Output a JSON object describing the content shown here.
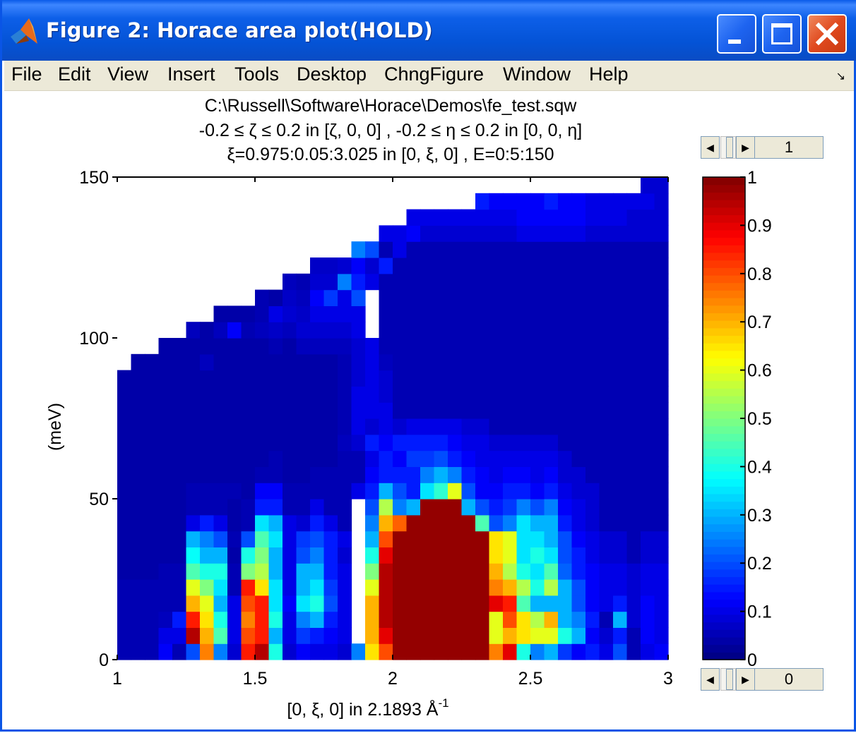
{
  "window": {
    "title": "Figure 2: Horace area plot(HOLD)",
    "app_icon": "matlab-icon",
    "controls": [
      "minimize-icon",
      "maximize-icon",
      "close-icon"
    ]
  },
  "menubar": {
    "items": [
      "File",
      "Edit",
      "View",
      "Insert",
      "Tools",
      "Desktop",
      "ChngFigure",
      "Window",
      "Help"
    ],
    "overflow_icon": "dock-arrow-icon"
  },
  "figure": {
    "title_lines": [
      "C:\\Russell\\Software\\Horace\\Demos\\fe_test.sqw",
      "-0.2 ≤ ζ ≤ 0.2 in [ζ, 0, 0] , -0.2 ≤ η ≤ 0.2 in [0, 0, η]",
      "ξ=0.975:0.05:3.025 in [0, ξ, 0] , E=0:5:150"
    ],
    "xlabel_main": "[0, ξ, 0] in 2.1893 Å",
    "xlabel_sup": "-1",
    "ylabel": "(meV)",
    "colorbar_ticks": [
      "0",
      "0.1",
      "0.2",
      "0.3",
      "0.4",
      "0.5",
      "0.6",
      "0.7",
      "0.8",
      "0.9",
      "1"
    ],
    "top_stepper_value": "1",
    "bottom_stepper_value": "0"
  },
  "chart_data": {
    "type": "heatmap",
    "colormap": "jet",
    "x_ticks": [
      "1",
      "1.5",
      "2",
      "2.5",
      "3"
    ],
    "y_ticks": [
      "0",
      "50",
      "100",
      "150"
    ],
    "xlim": [
      1,
      3
    ],
    "ylim": [
      0,
      150
    ],
    "clim": [
      0,
      1
    ],
    "x_bin_start": 1,
    "x_bin_width": 0.05,
    "y_bin_width": 5,
    "empty_cutoff_y": [
      90,
      95,
      95,
      100,
      100,
      105,
      105,
      110,
      110,
      110,
      115,
      115,
      120,
      120,
      125,
      125,
      125,
      130,
      130,
      135,
      135,
      140,
      140,
      140,
      140,
      140,
      145,
      145,
      145,
      145,
      145,
      145,
      145,
      145,
      145,
      145,
      145,
      145,
      150,
      150
    ],
    "columns": [
      [
        0.05,
        0.05,
        0.05,
        0.05,
        0.05,
        0.04,
        0.04,
        0.04,
        0.04,
        0.04,
        0.04,
        0.04,
        0.04,
        0.04,
        0.04,
        0.04,
        0.04,
        0.04
      ],
      [
        0.05,
        0.05,
        0.05,
        0.05,
        0.05,
        0.04,
        0.04,
        0.04,
        0.04,
        0.04,
        0.04,
        0.04,
        0.04,
        0.04,
        0.04,
        0.04,
        0.04,
        0.04,
        0.04
      ],
      [
        0.05,
        0.05,
        0.05,
        0.05,
        0.05,
        0.04,
        0.04,
        0.04,
        0.04,
        0.04,
        0.04,
        0.04,
        0.04,
        0.04,
        0.04,
        0.04,
        0.04,
        0.04,
        0.04
      ],
      [
        0.12,
        0.1,
        0.06,
        0.05,
        0.05,
        0.05,
        0.04,
        0.04,
        0.04,
        0.04,
        0.04,
        0.04,
        0.04,
        0.04,
        0.04,
        0.04,
        0.04,
        0.04,
        0.04,
        0.04
      ],
      [
        0.05,
        0.1,
        0.15,
        0.05,
        0.05,
        0.05,
        0.04,
        0.04,
        0.04,
        0.04,
        0.04,
        0.04,
        0.04,
        0.04,
        0.04,
        0.04,
        0.04,
        0.04,
        0.04,
        0.04
      ],
      [
        0.2,
        0.95,
        0.85,
        0.7,
        0.6,
        0.45,
        0.38,
        0.3,
        0.1,
        0.05,
        0.05,
        0.04,
        0.04,
        0.04,
        0.04,
        0.04,
        0.04,
        0.04,
        0.04,
        0.04,
        0.06
      ],
      [
        0.75,
        0.7,
        0.65,
        0.6,
        0.5,
        0.4,
        0.3,
        0.25,
        0.15,
        0.05,
        0.05,
        0.04,
        0.04,
        0.04,
        0.04,
        0.04,
        0.04,
        0.04,
        0.06,
        0.04,
        0.04
      ],
      [
        0.25,
        0.45,
        0.4,
        0.3,
        0.35,
        0.4,
        0.3,
        0.2,
        0.1,
        0.05,
        0.05,
        0.04,
        0.04,
        0.04,
        0.04,
        0.04,
        0.04,
        0.04,
        0.04,
        0.04,
        0.06,
        0.04
      ],
      [
        0.08,
        0.1,
        0.1,
        0.1,
        0.05,
        0.05,
        0.04,
        0.05,
        0.04,
        0.04,
        0.05,
        0.04,
        0.04,
        0.04,
        0.04,
        0.04,
        0.04,
        0.04,
        0.04,
        0.04,
        0.12,
        0.04
      ],
      [
        0.85,
        0.8,
        0.75,
        0.8,
        0.85,
        0.5,
        0.4,
        0.2,
        0.05,
        0.05,
        0.04,
        0.04,
        0.04,
        0.04,
        0.04,
        0.04,
        0.04,
        0.04,
        0.04,
        0.04,
        0.05,
        0.04,
        0.04
      ],
      [
        0.95,
        0.85,
        0.85,
        0.85,
        0.65,
        0.55,
        0.5,
        0.45,
        0.35,
        0.15,
        0.12,
        0.05,
        0.04,
        0.04,
        0.04,
        0.04,
        0.04,
        0.04,
        0.04,
        0.04,
        0.06,
        0.05,
        0.05
      ],
      [
        0.4,
        0.3,
        0.4,
        0.35,
        0.35,
        0.3,
        0.3,
        0.35,
        0.3,
        0.15,
        0.12,
        0.05,
        0.05,
        0.04,
        0.04,
        0.04,
        0.04,
        0.04,
        0.04,
        0.05,
        0.07,
        0.1,
        0.04,
        0.04
      ],
      [
        0.08,
        0.1,
        0.1,
        0.12,
        0.1,
        0.1,
        0.1,
        0.1,
        0.1,
        0.05,
        0.05,
        0.04,
        0.04,
        0.04,
        0.04,
        0.04,
        0.04,
        0.04,
        0.04,
        0.04,
        0.06,
        0.08,
        0.07,
        0.06
      ],
      [
        0.12,
        0.18,
        0.25,
        0.35,
        0.3,
        0.3,
        0.2,
        0.18,
        0.08,
        0.05,
        0.05,
        0.04,
        0.04,
        0.04,
        0.04,
        0.04,
        0.04,
        0.04,
        0.04,
        0.06,
        0.08,
        0.07,
        0.06,
        0.05
      ],
      [
        0.1,
        0.15,
        0.3,
        0.4,
        0.35,
        0.3,
        0.25,
        0.2,
        0.15,
        0.1,
        0.05,
        0.05,
        0.04,
        0.04,
        0.04,
        0.04,
        0.04,
        0.04,
        0.04,
        0.06,
        0.08,
        0.1,
        0.12,
        0.08,
        0.07
      ],
      [
        0.1,
        0.12,
        0.15,
        0.2,
        0.18,
        0.15,
        0.15,
        0.15,
        0.1,
        0.05,
        0.05,
        0.05,
        0.04,
        0.04,
        0.04,
        0.04,
        0.04,
        0.04,
        0.04,
        0.06,
        0.08,
        0.1,
        0.18,
        0.08,
        0.07
      ],
      [
        0.08,
        0.1,
        0.1,
        0.1,
        0.1,
        0.1,
        0.08,
        0.1,
        0.05,
        0.05,
        0.05,
        0.05,
        0.05,
        0.06,
        0.05,
        0.05,
        0.05,
        0.05,
        0.05,
        0.06,
        0.08,
        0.1,
        0.1,
        0.25,
        0.08,
        0.07
      ],
      [
        0.25,
        null,
        null,
        null,
        null,
        null,
        null,
        null,
        null,
        null,
        0.1,
        0.05,
        0.05,
        0.08,
        0.1,
        0.1,
        0.1,
        0.08,
        0.08,
        0.08,
        0.1,
        0.1,
        0.2,
        0.15,
        0.12,
        0.25
      ],
      [
        0.65,
        0.7,
        0.7,
        0.7,
        0.6,
        0.5,
        0.4,
        0.3,
        0.25,
        0.2,
        0.15,
        0.12,
        0.1,
        0.15,
        0.08,
        0.1,
        0.1,
        0.1,
        0.1,
        0.1,
        null,
        null,
        null,
        0.1,
        0.08,
        0.2,
        0.1
      ],
      [
        0.8,
        0.9,
        0.95,
        0.95,
        0.95,
        0.95,
        0.9,
        0.8,
        0.7,
        0.55,
        0.3,
        0.15,
        0.15,
        0.12,
        0.1,
        0.1,
        0.08,
        0.08,
        0.06,
        0.05,
        0.05,
        0.05,
        0.05,
        0.05,
        0.15,
        0.05,
        0.1
      ],
      [
        0.98,
        0.98,
        0.98,
        0.98,
        0.98,
        0.98,
        0.98,
        0.98,
        0.78,
        0.25,
        0.2,
        0.15,
        0.12,
        0.15,
        0.08,
        0.05,
        0.05,
        0.05,
        0.05,
        0.05,
        0.05,
        0.05,
        0.05,
        0.05,
        0.05,
        0.1,
        0.1,
        0.1
      ],
      [
        0.98,
        0.98,
        0.98,
        0.98,
        0.98,
        0.98,
        0.98,
        0.98,
        0.98,
        0.3,
        0.15,
        0.15,
        0.18,
        0.15,
        0.1,
        0.05,
        0.05,
        0.05,
        0.05,
        0.05,
        0.05,
        0.05,
        0.05,
        0.05,
        0.05,
        0.05,
        0.12,
        0.1,
        0.15
      ],
      [
        0.98,
        0.98,
        0.98,
        0.98,
        0.98,
        0.98,
        0.98,
        0.98,
        0.98,
        0.98,
        0.35,
        0.25,
        0.18,
        0.15,
        0.1,
        0.05,
        0.05,
        0.05,
        0.05,
        0.05,
        0.05,
        0.05,
        0.05,
        0.05,
        0.05,
        0.05,
        0.08,
        0.1,
        0.1
      ],
      [
        0.98,
        0.98,
        0.98,
        0.98,
        0.98,
        0.98,
        0.98,
        0.98,
        0.98,
        0.98,
        0.42,
        0.3,
        0.2,
        0.15,
        0.1,
        0.05,
        0.05,
        0.05,
        0.05,
        0.05,
        0.05,
        0.05,
        0.05,
        0.05,
        0.05,
        0.05,
        0.08,
        0.1,
        0.2,
        0.1
      ],
      [
        0.98,
        0.98,
        0.98,
        0.98,
        0.98,
        0.98,
        0.98,
        0.98,
        0.98,
        0.98,
        0.6,
        0.25,
        0.15,
        0.12,
        0.1,
        0.05,
        0.05,
        0.05,
        0.05,
        0.05,
        0.05,
        0.05,
        0.05,
        0.05,
        0.05,
        0.05,
        0.08,
        0.1,
        0.15,
        0.1
      ],
      [
        0.98,
        0.98,
        0.98,
        0.98,
        0.98,
        0.98,
        0.98,
        0.98,
        0.98,
        0.3,
        0.2,
        0.15,
        0.12,
        0.1,
        0.08,
        0.05,
        0.05,
        0.05,
        0.05,
        0.05,
        0.05,
        0.05,
        0.05,
        0.05,
        0.05,
        0.05,
        0.08,
        0.1,
        0.15,
        0.1,
        0.12
      ],
      [
        0.98,
        0.98,
        0.98,
        0.98,
        0.98,
        0.98,
        0.98,
        0.98,
        0.45,
        0.2,
        0.12,
        0.12,
        0.1,
        0.1,
        0.08,
        0.05,
        0.05,
        0.05,
        0.05,
        0.05,
        0.05,
        0.05,
        0.05,
        0.05,
        0.05,
        0.05,
        0.08,
        0.1,
        0.15,
        0.12,
        0.1
      ],
      [
        0.75,
        0.6,
        0.6,
        0.9,
        0.75,
        0.7,
        0.65,
        0.65,
        0.2,
        0.15,
        0.12,
        0.1,
        0.1,
        0.08,
        0.05,
        0.05,
        0.05,
        0.05,
        0.05,
        0.05,
        0.05,
        0.05,
        0.05,
        0.05,
        0.05,
        0.05,
        0.08,
        0.1,
        0.12,
        0.1,
        0.08,
        0.08
      ],
      [
        0.9,
        0.7,
        0.8,
        0.85,
        0.7,
        0.55,
        0.6,
        0.6,
        0.25,
        0.18,
        0.15,
        0.12,
        0.1,
        0.08,
        0.05,
        0.05,
        0.05,
        0.05,
        0.05,
        0.05,
        0.05,
        0.05,
        0.05,
        0.05,
        0.05,
        0.05,
        0.08,
        0.1,
        0.12,
        0.15,
        0.1,
        0.08
      ],
      [
        0.4,
        0.65,
        0.65,
        0.45,
        0.55,
        0.4,
        0.35,
        0.35,
        0.35,
        0.25,
        0.15,
        0.12,
        0.1,
        0.08,
        0.05,
        0.05,
        0.05,
        0.05,
        0.05,
        0.05,
        0.05,
        0.05,
        0.05,
        0.05,
        0.05,
        0.05,
        0.1,
        0.12,
        0.12,
        0.12,
        0.1,
        0.08,
        0.08
      ],
      [
        0.25,
        0.6,
        0.55,
        0.3,
        0.4,
        0.35,
        0.4,
        0.35,
        0.3,
        0.2,
        0.12,
        0.1,
        0.1,
        0.08,
        0.05,
        0.05,
        0.05,
        0.05,
        0.05,
        0.05,
        0.05,
        0.05,
        0.05,
        0.05,
        0.05,
        0.05,
        0.1,
        0.12,
        0.12,
        0.1,
        0.1,
        0.08,
        0.08
      ],
      [
        0.3,
        0.6,
        0.7,
        0.3,
        0.55,
        0.45,
        0.35,
        0.3,
        0.3,
        0.25,
        0.15,
        0.12,
        0.1,
        0.08,
        0.05,
        0.05,
        0.05,
        0.05,
        0.05,
        0.05,
        0.05,
        0.05,
        0.05,
        0.05,
        0.05,
        0.05,
        0.1,
        0.12,
        0.15,
        0.1,
        0.08,
        0.08,
        0.08,
        0.08
      ],
      [
        0.18,
        0.4,
        0.3,
        0.3,
        0.3,
        0.22,
        0.2,
        0.2,
        0.15,
        0.12,
        0.1,
        0.08,
        0.08,
        0.05,
        0.05,
        0.05,
        0.05,
        0.05,
        0.05,
        0.05,
        0.05,
        0.05,
        0.05,
        0.05,
        0.05,
        0.05,
        0.1,
        0.12,
        0.12,
        0.1,
        0.08,
        0.08,
        0.06,
        0.06
      ],
      [
        0.12,
        0.3,
        0.25,
        0.2,
        0.2,
        0.15,
        0.15,
        0.12,
        0.1,
        0.1,
        0.08,
        0.08,
        0.05,
        0.05,
        0.05,
        0.05,
        0.05,
        0.05,
        0.05,
        0.05,
        0.05,
        0.05,
        0.05,
        0.05,
        0.05,
        0.05,
        0.1,
        0.12,
        0.12,
        0.12,
        0.08,
        0.08,
        0.06,
        0.06
      ],
      [
        0.15,
        0.12,
        0.15,
        0.12,
        0.12,
        0.12,
        0.1,
        0.1,
        0.08,
        0.08,
        0.08,
        0.05,
        0.05,
        0.05,
        0.05,
        0.05,
        0.05,
        0.05,
        0.05,
        0.05,
        0.05,
        0.05,
        0.05,
        0.05,
        0.05,
        0.05,
        0.08,
        0.1,
        0.1,
        0.1,
        0.08,
        0.08,
        0.06,
        0.06
      ],
      [
        0.1,
        0.08,
        0.05,
        0.1,
        0.1,
        0.1,
        0.08,
        0.08,
        0.05,
        0.05,
        0.05,
        0.05,
        0.05,
        0.05,
        0.05,
        0.05,
        0.05,
        0.05,
        0.05,
        0.05,
        0.05,
        0.05,
        0.05,
        0.05,
        0.05,
        0.05,
        0.08,
        0.1,
        0.1,
        0.08,
        0.08,
        0.06,
        0.06,
        0.06
      ],
      [
        0.2,
        0.15,
        0.3,
        0.15,
        0.1,
        0.1,
        0.08,
        0.08,
        0.05,
        0.05,
        0.05,
        0.05,
        0.05,
        0.05,
        0.05,
        0.05,
        0.05,
        0.05,
        0.05,
        0.05,
        0.05,
        0.05,
        0.05,
        0.05,
        0.05,
        0.05,
        0.08,
        0.1,
        0.1,
        0.08,
        0.08,
        0.06,
        0.06,
        0.06
      ],
      [
        0.05,
        0.05,
        0.08,
        0.08,
        0.08,
        0.08,
        0.05,
        0.05,
        0.05,
        0.05,
        0.05,
        0.05,
        0.05,
        0.05,
        0.05,
        0.05,
        0.05,
        0.05,
        0.05,
        0.05,
        0.05,
        0.05,
        0.05,
        0.05,
        0.05,
        0.05,
        0.08,
        0.08,
        0.1,
        0.08,
        0.08,
        0.06,
        0.06,
        0.06
      ],
      [
        0.1,
        0.12,
        0.12,
        0.12,
        0.1,
        0.1,
        0.08,
        0.08,
        0.05,
        0.05,
        0.05,
        0.05,
        0.05,
        0.05,
        0.05,
        0.05,
        0.05,
        0.05,
        0.05,
        0.05,
        0.05,
        0.05,
        0.05,
        0.05,
        0.05,
        0.05,
        0.08,
        0.08,
        0.1,
        0.08,
        0.08,
        0.06,
        0.06,
        0.06,
        0.05
      ],
      [
        0.12,
        0.1,
        0.1,
        0.1,
        0.1,
        0.1,
        0.08,
        0.08,
        0.05,
        0.05,
        0.05,
        0.05,
        0.05,
        0.05,
        0.05,
        0.05,
        0.05,
        0.05,
        0.05,
        0.05,
        0.05,
        0.05,
        0.05,
        0.05,
        0.05,
        0.05,
        0.08,
        0.08,
        0.08,
        0.08,
        0.06,
        0.06,
        0.06,
        0.06,
        0.05
      ]
    ]
  }
}
